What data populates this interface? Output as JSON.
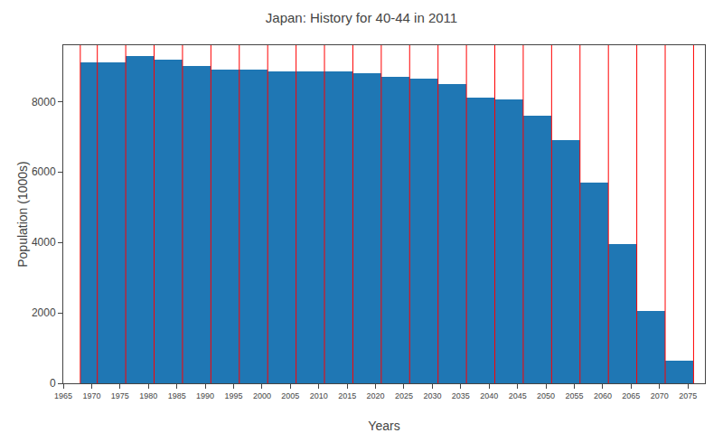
{
  "chart_data": {
    "type": "histogram",
    "title": "Japan: History for 40-44 in 2011",
    "xlabel": "Years",
    "ylabel": "Population (1000s)",
    "color": "#1f77b4",
    "bins": [
      1968,
      1971,
      1976,
      1981,
      1986,
      1991,
      1996,
      2001,
      2006,
      2011,
      2016,
      2021,
      2026,
      2031,
      2036,
      2041,
      2046,
      2051,
      2056,
      2061,
      2066,
      2071,
      2076
    ],
    "values": [
      9100,
      9100,
      9300,
      9200,
      9000,
      8900,
      8900,
      8850,
      8850,
      8850,
      8800,
      8700,
      8650,
      8500,
      8100,
      8050,
      7600,
      6900,
      5700,
      3950,
      2050,
      650
    ],
    "xlim": [
      1965,
      2078
    ],
    "ylim": [
      0,
      9600
    ],
    "xticks": [
      1965,
      1970,
      1975,
      1980,
      1985,
      1990,
      1995,
      2000,
      2005,
      2010,
      2015,
      2020,
      2025,
      2030,
      2035,
      2040,
      2045,
      2050,
      2055,
      2060,
      2065,
      2070,
      2075
    ],
    "yticks": [
      0,
      2000,
      4000,
      6000,
      8000
    ],
    "grid": false
  }
}
